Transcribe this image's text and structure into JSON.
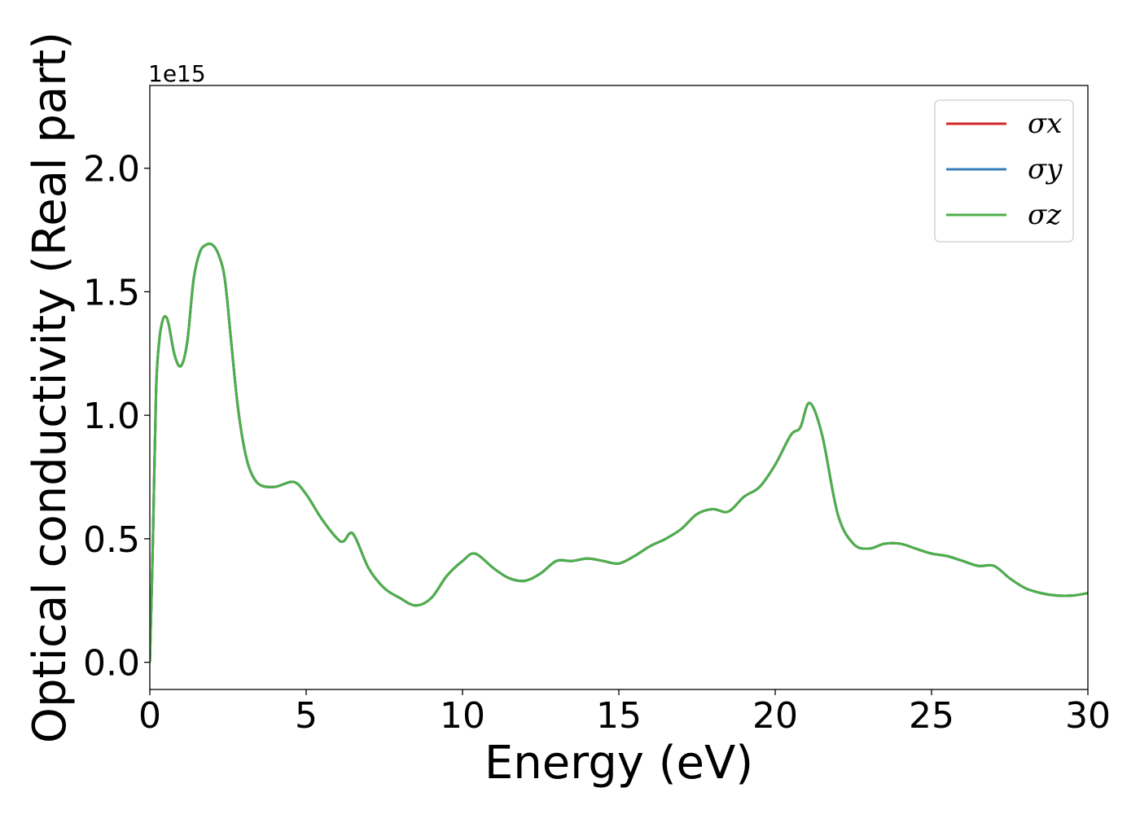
{
  "chart_data": {
    "type": "line",
    "xlabel": "Energy (eV)",
    "ylabel": "Optical conductivity (Real part)",
    "y_offset_label": "1e15",
    "xlim": [
      0,
      30
    ],
    "ylim": [
      -0.11,
      2.335
    ],
    "x_ticks": [
      0,
      5,
      10,
      15,
      20,
      25,
      30
    ],
    "x_tick_labels": [
      "0",
      "5",
      "10",
      "15",
      "20",
      "25",
      "30"
    ],
    "y_ticks": [
      0.0,
      0.5,
      1.0,
      1.5,
      2.0
    ],
    "y_tick_labels": [
      "0.0",
      "0.5",
      "1.0",
      "1.5",
      "2.0"
    ],
    "grid": false,
    "legend_position": "top-right",
    "x": [
      0,
      0.1,
      0.2,
      0.3,
      0.4,
      0.5,
      0.6,
      0.8,
      1.0,
      1.2,
      1.4,
      1.6,
      1.8,
      2.0,
      2.2,
      2.4,
      2.6,
      2.8,
      3.0,
      3.2,
      3.5,
      4.0,
      4.6,
      5.0,
      5.5,
      6.0,
      6.2,
      6.5,
      7.0,
      7.5,
      8.0,
      8.5,
      9.0,
      9.5,
      10.0,
      10.4,
      11.0,
      11.5,
      12.0,
      12.5,
      13.0,
      13.5,
      14.0,
      14.5,
      15.0,
      15.5,
      16.0,
      16.5,
      17.0,
      17.5,
      18.0,
      18.5,
      19.0,
      19.5,
      20.0,
      20.5,
      20.8,
      21.1,
      21.5,
      22.0,
      22.5,
      23.0,
      23.5,
      24.0,
      24.5,
      25.0,
      25.5,
      26.0,
      26.5,
      27.0,
      27.5,
      28.0,
      28.5,
      29.0,
      29.5,
      30.0
    ],
    "series": [
      {
        "name": "σx",
        "color": "#d62728",
        "values": [
          0.0,
          0.5,
          1.1,
          1.3,
          1.38,
          1.4,
          1.37,
          1.24,
          1.2,
          1.3,
          1.55,
          1.66,
          1.69,
          1.69,
          1.65,
          1.55,
          1.3,
          1.05,
          0.88,
          0.78,
          0.72,
          0.71,
          0.73,
          0.68,
          0.58,
          0.5,
          0.49,
          0.52,
          0.38,
          0.3,
          0.26,
          0.23,
          0.26,
          0.35,
          0.41,
          0.44,
          0.38,
          0.34,
          0.33,
          0.36,
          0.41,
          0.41,
          0.42,
          0.41,
          0.4,
          0.43,
          0.47,
          0.5,
          0.54,
          0.6,
          0.62,
          0.61,
          0.67,
          0.71,
          0.8,
          0.92,
          0.95,
          1.05,
          0.92,
          0.6,
          0.48,
          0.46,
          0.48,
          0.48,
          0.46,
          0.44,
          0.43,
          0.41,
          0.39,
          0.39,
          0.34,
          0.3,
          0.28,
          0.27,
          0.27,
          0.28
        ]
      },
      {
        "name": "σy",
        "color": "#377eb8",
        "values": [
          0.0,
          0.5,
          1.1,
          1.3,
          1.38,
          1.4,
          1.37,
          1.24,
          1.2,
          1.3,
          1.55,
          1.66,
          1.69,
          1.69,
          1.65,
          1.55,
          1.3,
          1.05,
          0.88,
          0.78,
          0.72,
          0.71,
          0.73,
          0.68,
          0.58,
          0.5,
          0.49,
          0.52,
          0.38,
          0.3,
          0.26,
          0.23,
          0.26,
          0.35,
          0.41,
          0.44,
          0.38,
          0.34,
          0.33,
          0.36,
          0.41,
          0.41,
          0.42,
          0.41,
          0.4,
          0.43,
          0.47,
          0.5,
          0.54,
          0.6,
          0.62,
          0.61,
          0.67,
          0.71,
          0.8,
          0.92,
          0.95,
          1.05,
          0.92,
          0.6,
          0.48,
          0.46,
          0.48,
          0.48,
          0.46,
          0.44,
          0.43,
          0.41,
          0.39,
          0.39,
          0.34,
          0.3,
          0.28,
          0.27,
          0.27,
          0.28
        ]
      },
      {
        "name": "σz",
        "color": "#4daf4a",
        "values": [
          0.0,
          0.5,
          1.1,
          1.3,
          1.38,
          1.4,
          1.37,
          1.24,
          1.2,
          1.3,
          1.55,
          1.66,
          1.69,
          1.69,
          1.65,
          1.55,
          1.3,
          1.05,
          0.88,
          0.78,
          0.72,
          0.71,
          0.73,
          0.68,
          0.58,
          0.5,
          0.49,
          0.52,
          0.38,
          0.3,
          0.26,
          0.23,
          0.26,
          0.35,
          0.41,
          0.44,
          0.38,
          0.34,
          0.33,
          0.36,
          0.41,
          0.41,
          0.42,
          0.41,
          0.4,
          0.43,
          0.47,
          0.5,
          0.54,
          0.6,
          0.62,
          0.61,
          0.67,
          0.71,
          0.8,
          0.92,
          0.95,
          1.05,
          0.92,
          0.6,
          0.48,
          0.46,
          0.48,
          0.48,
          0.46,
          0.44,
          0.43,
          0.41,
          0.39,
          0.39,
          0.34,
          0.3,
          0.28,
          0.27,
          0.27,
          0.28
        ]
      }
    ]
  }
}
